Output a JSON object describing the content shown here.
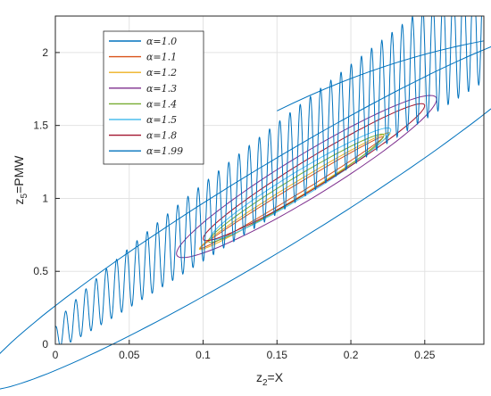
{
  "chart_data": {
    "type": "line",
    "title": "",
    "xlabel": {
      "main": "z",
      "sub": "2",
      "rest": "=X"
    },
    "ylabel": {
      "main": "z",
      "sub": "5",
      "rest": "=PMW"
    },
    "xlim": [
      0,
      0.29
    ],
    "ylim": [
      0,
      2.25
    ],
    "xticks": [
      "0",
      "0.05",
      "0.1",
      "0.15",
      "0.2",
      "0.25"
    ],
    "yticks": [
      "0",
      "0.5",
      "1",
      "1.5",
      "2"
    ],
    "grid": true,
    "legend_position": "top-left",
    "series": [
      {
        "name": "α=1.0",
        "color": "#0072BD"
      },
      {
        "name": "α=1.1",
        "color": "#D95319"
      },
      {
        "name": "α=1.2",
        "color": "#EDB120"
      },
      {
        "name": "α=1.3",
        "color": "#7E2F8E"
      },
      {
        "name": "α=1.4",
        "color": "#77AC30"
      },
      {
        "name": "α=1.5",
        "color": "#4DBEEE"
      },
      {
        "name": "α=1.8",
        "color": "#A2142F"
      },
      {
        "name": "α=1.99",
        "color": "#0072BD"
      }
    ]
  }
}
